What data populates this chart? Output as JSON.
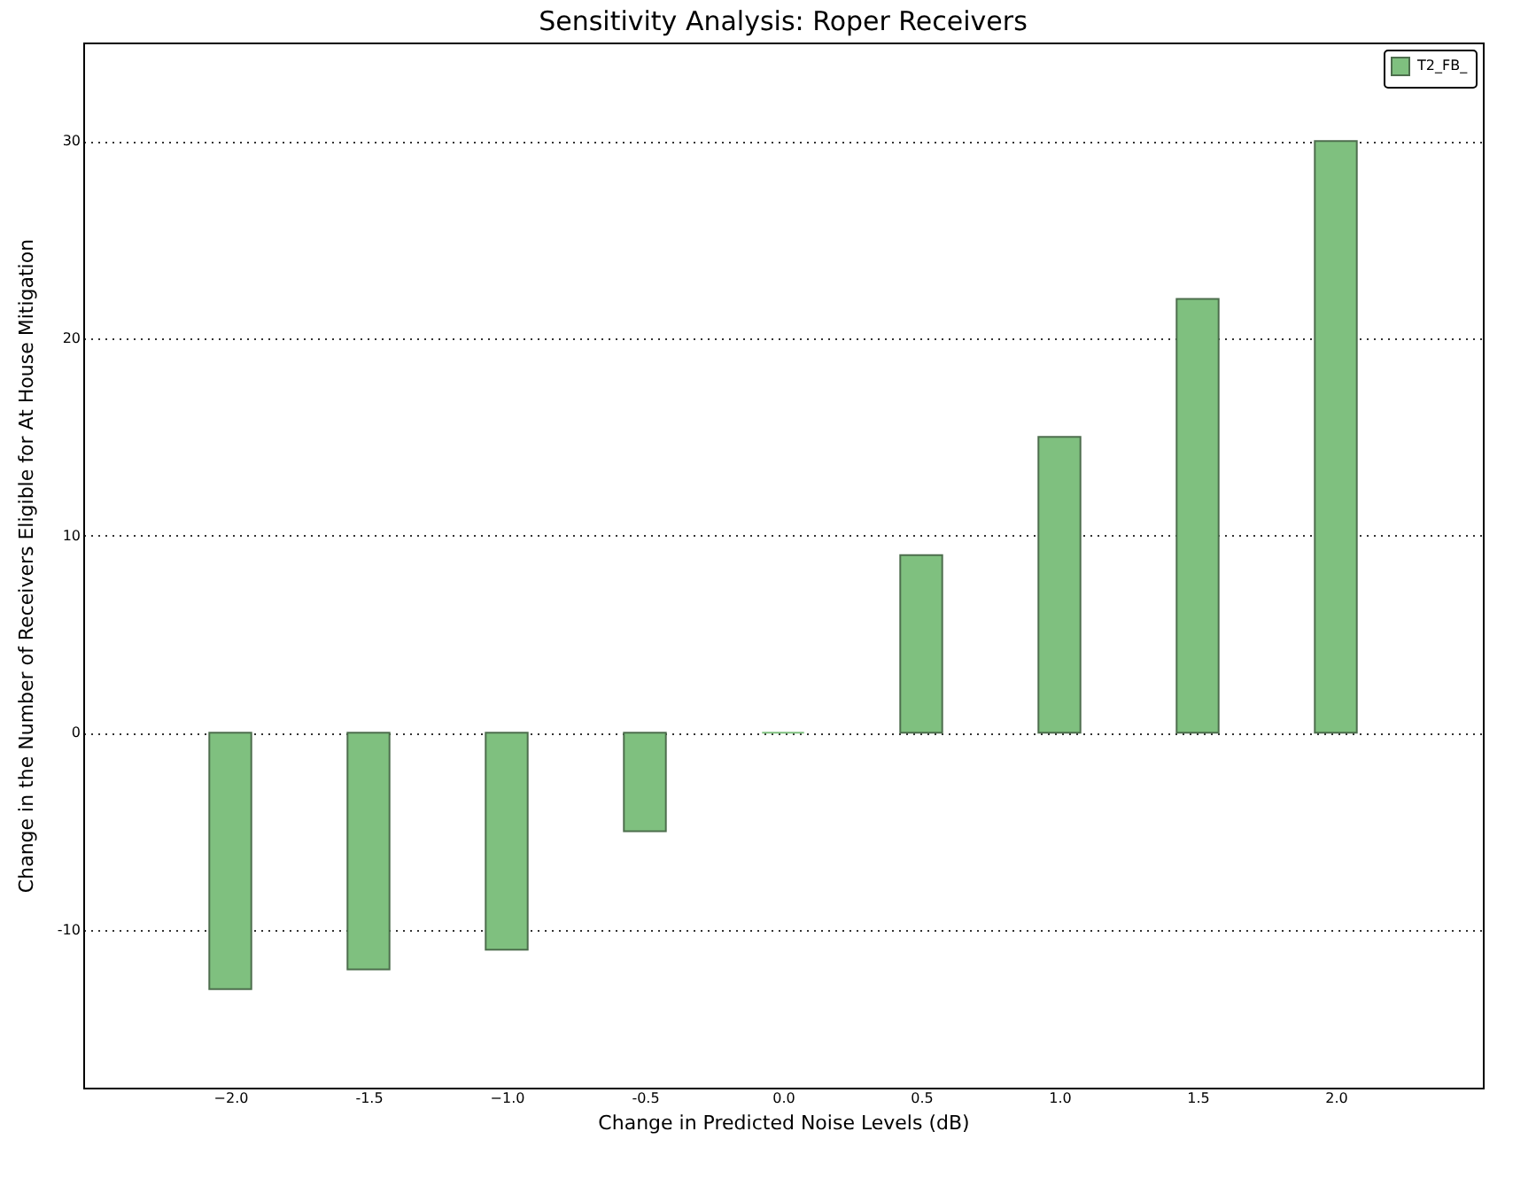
{
  "chart_data": {
    "type": "bar",
    "title": "Sensitivity Analysis: Roper Receivers",
    "xlabel": "Change in Predicted Noise Levels (dB)",
    "ylabel": "Change in the Number of Receivers Eligible for At House Mitigation",
    "x": [
      -2.0,
      -1.5,
      -1.0,
      -0.5,
      0.0,
      0.5,
      1.0,
      1.5,
      2.0
    ],
    "series": [
      {
        "name": "T2_FB_",
        "color": "#7fc07f",
        "values": [
          -13,
          -12,
          -11,
          -5,
          0,
          9,
          15,
          22,
          30
        ]
      }
    ],
    "xlim": [
      -2.5,
      2.5
    ],
    "xticks": [
      {
        "value": -2,
        "label": "−2.0"
      },
      -1.5,
      {
        "value": -1,
        "label": "−1.0"
      },
      -0.5,
      {
        "value": 0,
        "label": "0.0"
      },
      0.5,
      {
        "value": 1,
        "label": "1.0"
      },
      1.5,
      {
        "value": 2,
        "label": "2.0"
      }
    ],
    "ylim": [
      -18,
      35
    ],
    "yticks": [
      -10,
      0,
      10,
      20,
      30
    ],
    "grid": "y",
    "legend": "top right"
  }
}
